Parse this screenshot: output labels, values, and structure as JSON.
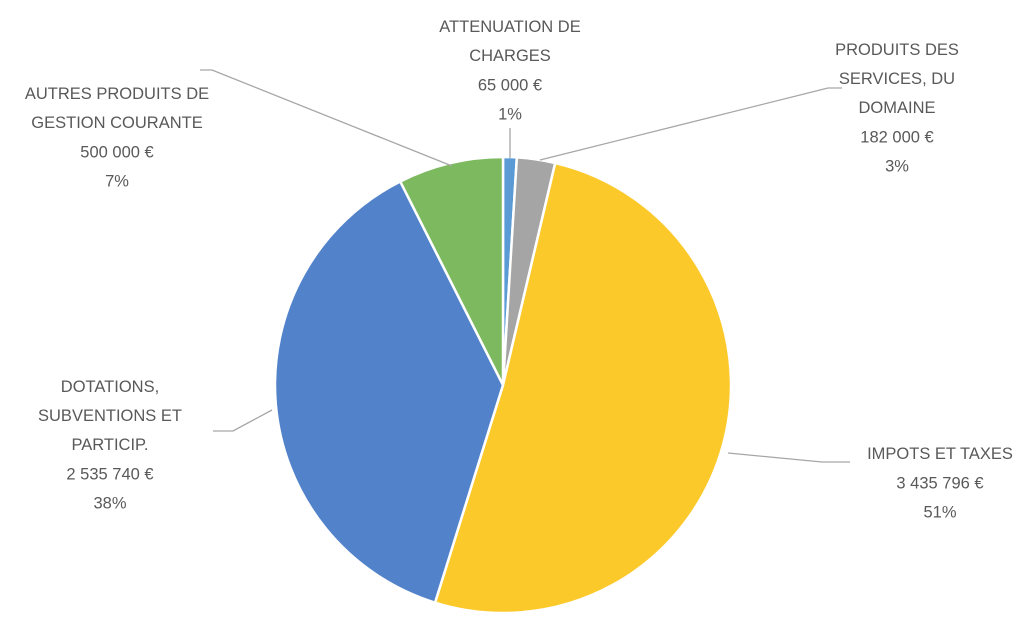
{
  "chart_data": {
    "type": "pie",
    "categories": [
      "ATTENUATION DE CHARGES",
      "PRODUITS DES SERVICES, DU DOMAINE",
      "IMPOTS ET TAXES",
      "DOTATIONS, SUBVENTIONS ET PARTICIP.",
      "AUTRES PRODUITS DE GESTION COURANTE"
    ],
    "values": [
      65000,
      182000,
      3435796,
      2535740,
      500000
    ],
    "value_labels": [
      "65 000 €",
      "182 000 €",
      "3 435 796 €",
      "2 535 740 €",
      "500 000 €"
    ],
    "percent_labels": [
      "1%",
      "3%",
      "51%",
      "38%",
      "7%"
    ],
    "colors": [
      "#5b9bd5",
      "#a5a5a5",
      "#fcc92a",
      "#5283ca",
      "#7db95e"
    ]
  }
}
